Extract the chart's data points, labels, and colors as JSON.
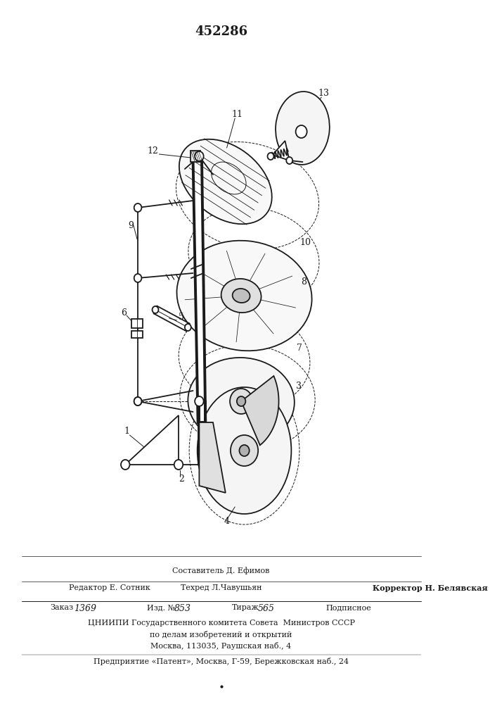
{
  "patent_number": "452286",
  "bg_color": "#ffffff",
  "line_color": "#1a1a1a",
  "text_color": "#1a1a1a",
  "footer_lines": [
    "Составитель Д. Ефимов",
    "Редактор Е. Сотник      Техред Л.Чавушьян      Корректор Н. Белявская",
    "Заказ 1369        Изд. № 853        Тираж 565        Подписное",
    "ЦНИИПИ Государственного комитета Совета  Министров СССР",
    "по делам изобретений и открытий",
    "Москва, 113035, Раушская наб., 4",
    "Предприятие «Патент», Москва, Г-59, Бережковская наб., 24"
  ]
}
